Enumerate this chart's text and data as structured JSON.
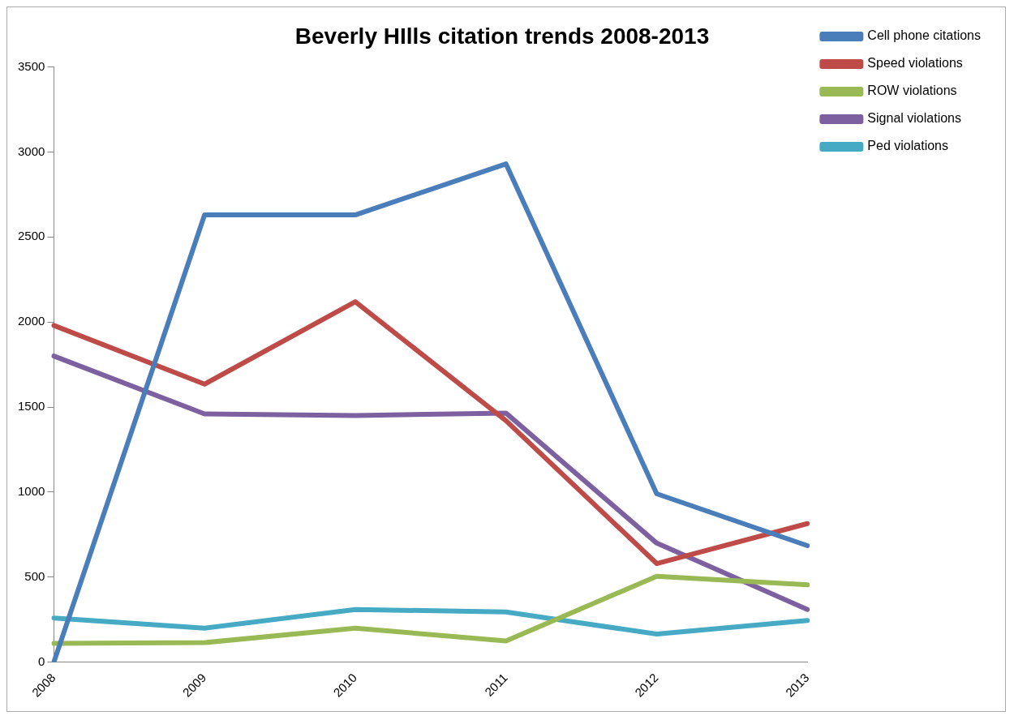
{
  "chart_data": {
    "type": "line",
    "title": "Beverly HIlls citation trends 2008-2013",
    "categories": [
      "2008",
      "2009",
      "2010",
      "2011",
      "2012",
      "2013"
    ],
    "series": [
      {
        "name": "Cell phone citations",
        "color": "#4a7ebb",
        "values": [
          0,
          2630,
          2630,
          2930,
          990,
          685
        ]
      },
      {
        "name": "Speed violations",
        "color": "#be4b48",
        "values": [
          1980,
          1635,
          2120,
          1420,
          580,
          815
        ]
      },
      {
        "name": "ROW violations",
        "color": "#98b954",
        "values": [
          110,
          115,
          200,
          125,
          505,
          455
        ]
      },
      {
        "name": "Signal violations",
        "color": "#7d60a0",
        "values": [
          1800,
          1460,
          1450,
          1465,
          700,
          310
        ]
      },
      {
        "name": "Ped violations",
        "color": "#46aac5",
        "values": [
          260,
          200,
          310,
          295,
          165,
          245
        ]
      }
    ],
    "ylim": [
      0,
      3500
    ],
    "yticks": [
      0,
      500,
      1000,
      1500,
      2000,
      2500,
      3000,
      3500
    ],
    "grid": false,
    "legend": "right",
    "marker": "none",
    "line_style": "solid"
  }
}
